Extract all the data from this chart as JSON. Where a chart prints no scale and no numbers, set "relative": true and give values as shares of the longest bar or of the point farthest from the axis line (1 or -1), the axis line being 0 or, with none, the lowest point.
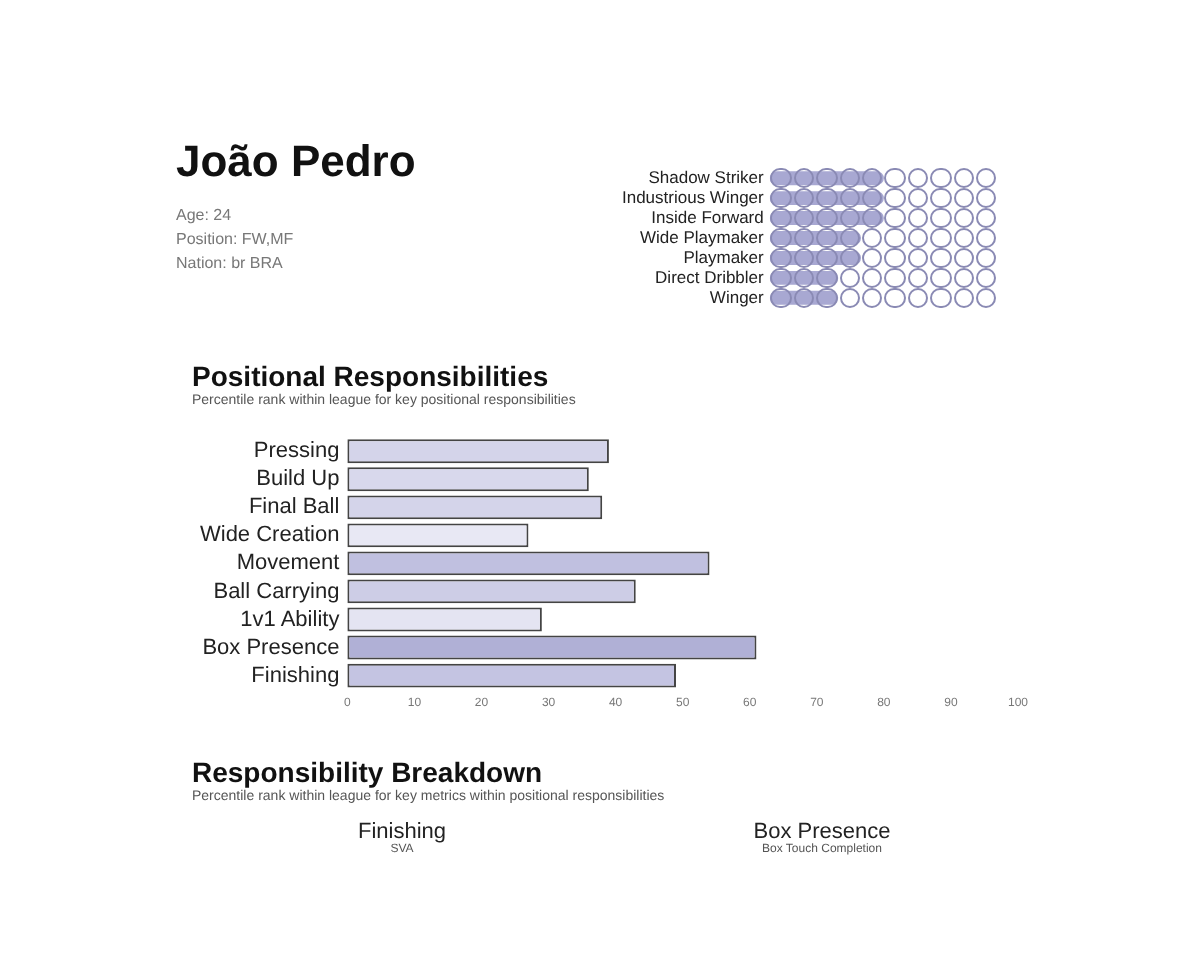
{
  "chart_data": [
    {
      "type": "other",
      "title": "João Pedro",
      "annotations": [
        "Age: 24",
        "Position: FW,MF",
        "Nation: br BRA"
      ]
    },
    {
      "type": "bar",
      "orientation": "horizontal",
      "relative": true,
      "categories": [
        "Shadow Striker",
        "Industrious Winger",
        "Inside Forward",
        "Wide Playmaker",
        "Playmaker",
        "Direct Dribbler",
        "Winger"
      ],
      "values": [
        1,
        1,
        1,
        0.8,
        0.8,
        0.6,
        0.6
      ],
      "color": "#a8a8d2"
    },
    {
      "type": "bar",
      "orientation": "horizontal",
      "title": "Positional Responsibilities",
      "subtitle": "Percentile rank within league for key positional responsibilities",
      "categories": [
        "Pressing",
        "Build Up",
        "Final Ball",
        "Wide Creation",
        "Movement",
        "Ball Carrying",
        "1v1 Ability",
        "Box Presence",
        "Finishing"
      ],
      "values": [
        39,
        36,
        38,
        27,
        54,
        43,
        29,
        61,
        49
      ],
      "colors": [
        "#d4d4ea",
        "#d8d8ec",
        "#d4d4ea",
        "#e8e8f4",
        "#c0c0e0",
        "#cdcde6",
        "#e4e4f2",
        "#b0b0d6",
        "#c4c4e2"
      ],
      "xlim": [
        0,
        100
      ],
      "xticks": [
        0,
        10,
        20,
        30,
        40,
        50,
        60,
        70,
        80,
        90,
        100
      ],
      "grid": false
    },
    {
      "type": "other",
      "title": "Responsibility Breakdown",
      "subtitle": "Percentile rank within league for key metrics within positional responsibilities",
      "annotations": [
        "Finishing",
        "SVA",
        "Box Presence",
        "Box Touch Completion"
      ]
    }
  ]
}
